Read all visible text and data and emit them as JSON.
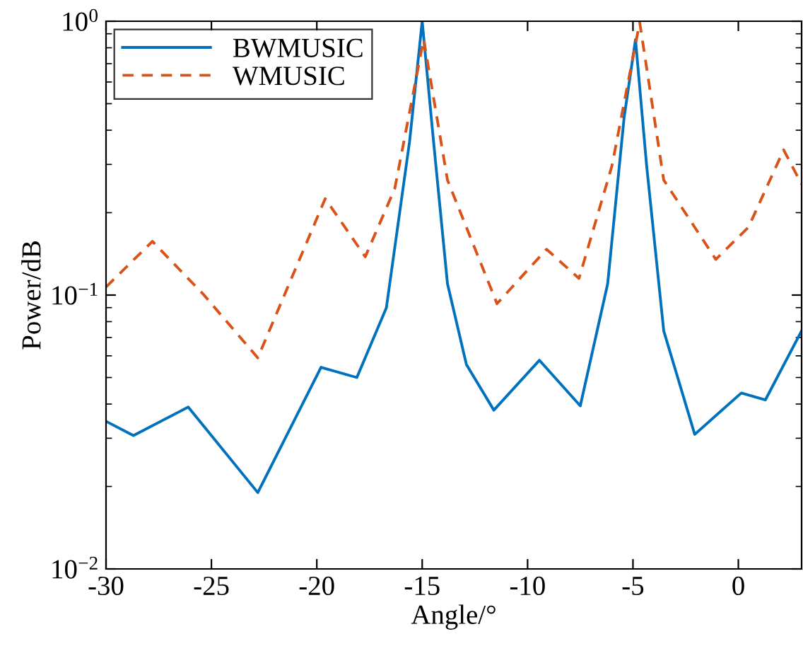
{
  "chart_data": {
    "type": "line",
    "xlabel": "Angle/°",
    "ylabel": "Power/dB",
    "log": "y",
    "xlim": [
      -30,
      3
    ],
    "xticks": [
      -30,
      -25,
      -20,
      -15,
      -10,
      -5,
      0
    ],
    "ylim": [
      0.01,
      1
    ],
    "yticks": [
      {
        "value": 0.01,
        "label": "10$^{−2}$"
      },
      {
        "value": 0.1,
        "label": "10$^{−1}$"
      },
      {
        "value": 1,
        "label": "10$^{0}$"
      }
    ],
    "grid": false,
    "legend": "top left",
    "series": [
      {
        "name": "BWMUSIC",
        "color": "#0072bd",
        "line_style": "solid",
        "x": [
          -30,
          -28.7,
          -26.1,
          -22.8,
          -19.8,
          -18.1,
          -16.7,
          -15.6,
          -15.0,
          -14.46,
          -13.8,
          -12.9,
          -11.6,
          -9.44,
          -7.5,
          -6.2,
          -5.42,
          -4.88,
          -4.35,
          -3.54,
          -2.07,
          0.14,
          1.28,
          3.0
        ],
        "values": [
          0.0346,
          0.0307,
          0.039,
          0.019,
          0.0545,
          0.05,
          0.0898,
          0.363,
          1.0,
          0.363,
          0.11,
          0.0557,
          0.038,
          0.0578,
          0.0394,
          0.11,
          0.445,
          0.857,
          0.296,
          0.074,
          0.031,
          0.0439,
          0.0414,
          0.074
        ]
      },
      {
        "name": "WMUSIC",
        "color": "#d95319",
        "line_style": "dashed",
        "x": [
          -30,
          -27.8,
          -25.4,
          -22.8,
          -19.6,
          -17.7,
          -16.3,
          -14.93,
          -13.8,
          -11.45,
          -9.1,
          -7.56,
          -6.0,
          -4.68,
          -3.54,
          -1.07,
          0.48,
          2.15,
          3.0
        ],
        "values": [
          0.107,
          0.157,
          0.101,
          0.059,
          0.225,
          0.138,
          0.245,
          0.86,
          0.263,
          0.093,
          0.147,
          0.115,
          0.296,
          0.99,
          0.263,
          0.135,
          0.177,
          0.339,
          0.254
        ]
      }
    ]
  }
}
